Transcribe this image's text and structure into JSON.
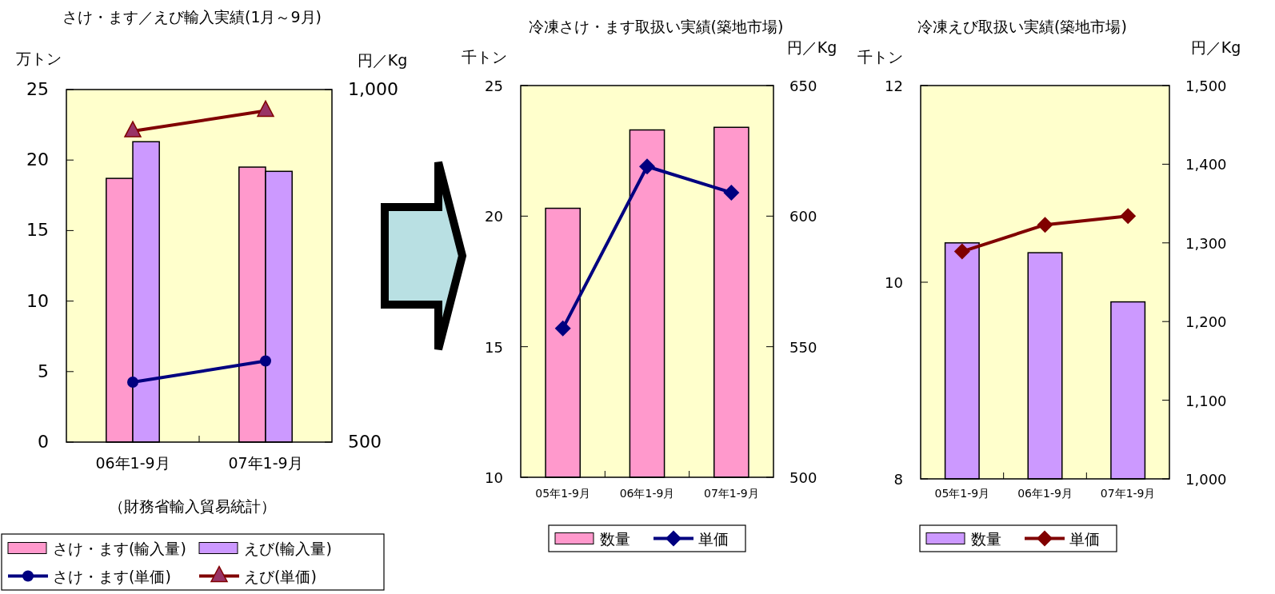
{
  "chart_data": [
    {
      "type": "bar",
      "title": "さけ・ます／えび輸入実績(1月～9月)",
      "ylabel": "万トン",
      "y2label": "円／Kg",
      "categories": [
        "06年1-9月",
        "07年1-9月"
      ],
      "series": [
        {
          "name": "さけ・ます(輸入量)",
          "color": "#ff99cc",
          "values": [
            18.7,
            19.5
          ]
        },
        {
          "name": "えび(輸入量)",
          "color": "#cc99ff",
          "values": [
            21.3,
            19.2
          ]
        },
        {
          "name": "さけ・ます(単価)",
          "type": "line",
          "axis": "y2",
          "marker": "circle",
          "color": "#000080",
          "values": [
            585,
            615
          ]
        },
        {
          "name": "えび(単価)",
          "type": "line",
          "axis": "y2",
          "marker": "triangle",
          "color": "#800000",
          "values": [
            941,
            970
          ]
        }
      ],
      "ylim": [
        0,
        25
      ],
      "yticks": [
        0,
        5,
        10,
        15,
        20,
        25
      ],
      "y2lim": [
        500,
        1000
      ],
      "y2ticks": [
        500,
        {
          "value": 1000,
          "label": "1,000"
        }
      ],
      "legend": "bottom",
      "annotations": [
        "（財務省輸入貿易統計）"
      ]
    },
    {
      "type": "bar",
      "title": "冷凍さけ・ます取扱い実績(築地市場)",
      "ylabel": "千トン",
      "y2label": "円／Kg",
      "categories": [
        "05年1-9月",
        "06年1-9月",
        "07年1-9月"
      ],
      "series": [
        {
          "name": "数量",
          "color": "#ff99cc",
          "values": [
            20.3,
            23.3,
            23.4
          ]
        },
        {
          "name": "単価",
          "type": "line",
          "axis": "y2",
          "marker": "diamond",
          "color": "#000080",
          "values": [
            557,
            619,
            609
          ]
        }
      ],
      "ylim": [
        10,
        25
      ],
      "yticks": [
        10,
        15,
        20,
        25
      ],
      "y2lim": [
        500,
        650
      ],
      "y2ticks": [
        500,
        550,
        600,
        650
      ],
      "legend": "bottom"
    },
    {
      "type": "bar",
      "title": "冷凍えび取扱い実績(築地市場)",
      "ylabel": "千トン",
      "y2label": "円／Kg",
      "categories": [
        "05年1-9月",
        "06年1-9月",
        "07年1-9月"
      ],
      "series": [
        {
          "name": "数量",
          "color": "#cc99ff",
          "values": [
            10.4,
            10.3,
            9.8
          ]
        },
        {
          "name": "単価",
          "type": "line",
          "axis": "y2",
          "marker": "diamond",
          "color": "#800000",
          "values": [
            1289,
            1323,
            1334
          ]
        }
      ],
      "ylim": [
        8,
        12
      ],
      "yticks": [
        8,
        10,
        12
      ],
      "y2lim": [
        1000,
        1500
      ],
      "y2ticks": [
        {
          "value": 1000,
          "label": "1,000"
        },
        {
          "value": 1100,
          "label": "1,100"
        },
        {
          "value": 1200,
          "label": "1,200"
        },
        {
          "value": 1300,
          "label": "1,300"
        },
        {
          "value": 1400,
          "label": "1,400"
        },
        {
          "value": 1500,
          "label": "1,500"
        }
      ],
      "legend": "bottom"
    }
  ]
}
